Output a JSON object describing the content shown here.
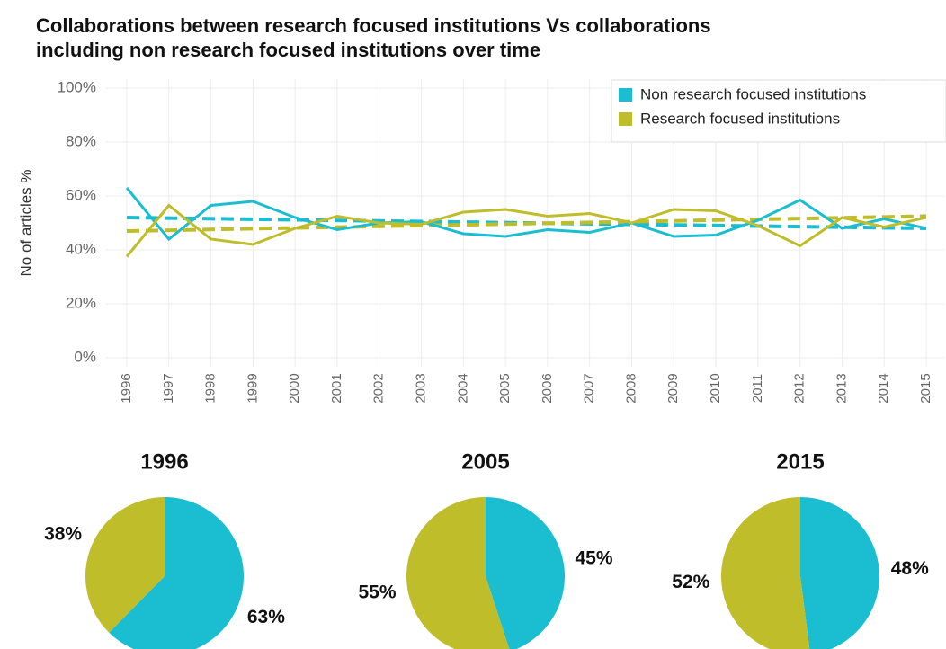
{
  "chart_data": [
    {
      "type": "line",
      "title": "Collaborations between research focused institutions Vs collaborations including non research focused institutions over time",
      "y_label": "No of articles %",
      "categories": [
        "1996",
        "1997",
        "1998",
        "1999",
        "2000",
        "2001",
        "2002",
        "2003",
        "2004",
        "2005",
        "2006",
        "2007",
        "2008",
        "2009",
        "2010",
        "2011",
        "2012",
        "2013",
        "2014",
        "2015"
      ],
      "series": [
        {
          "name": "Non research focused institutions",
          "color": "#1bbdd0",
          "values": [
            63,
            44,
            56.5,
            58,
            52,
            47.5,
            50,
            50.5,
            46,
            45,
            47.5,
            46.5,
            50,
            45,
            45.5,
            51,
            58.5,
            48,
            51.5,
            48
          ],
          "trend": [
            52,
            48
          ]
        },
        {
          "name": "Research focused institutions",
          "color": "#bfbd2a",
          "values": [
            37.5,
            56.5,
            44,
            42,
            48,
            52.5,
            50,
            49.5,
            54,
            55,
            52.5,
            53.5,
            50,
            55,
            54.5,
            49,
            41.5,
            52,
            48.5,
            52
          ],
          "trend": [
            47,
            52.5
          ]
        }
      ],
      "ylim": [
        0,
        100
      ],
      "yticks": [
        {
          "value": 0,
          "label": "0%"
        },
        {
          "value": 20,
          "label": "20%"
        },
        {
          "value": 40,
          "label": "40%"
        },
        {
          "value": 60,
          "label": "60%"
        },
        {
          "value": 80,
          "label": "80%"
        },
        {
          "value": 100,
          "label": "100%"
        }
      ],
      "grid": true,
      "legend": "top-right"
    },
    {
      "type": "pie",
      "title": "1996",
      "values": [
        63,
        38
      ],
      "value_labels": [
        "63%",
        "38%"
      ],
      "colors": [
        "#1bbdd0",
        "#bfbd2a"
      ]
    },
    {
      "type": "pie",
      "title": "2005",
      "values": [
        45,
        55
      ],
      "value_labels": [
        "45%",
        "55%"
      ],
      "colors": [
        "#1bbdd0",
        "#bfbd2a"
      ]
    },
    {
      "type": "pie",
      "title": "2015",
      "values": [
        48,
        52
      ],
      "value_labels": [
        "48%",
        "52%"
      ],
      "colors": [
        "#1bbdd0",
        "#bfbd2a"
      ]
    }
  ]
}
